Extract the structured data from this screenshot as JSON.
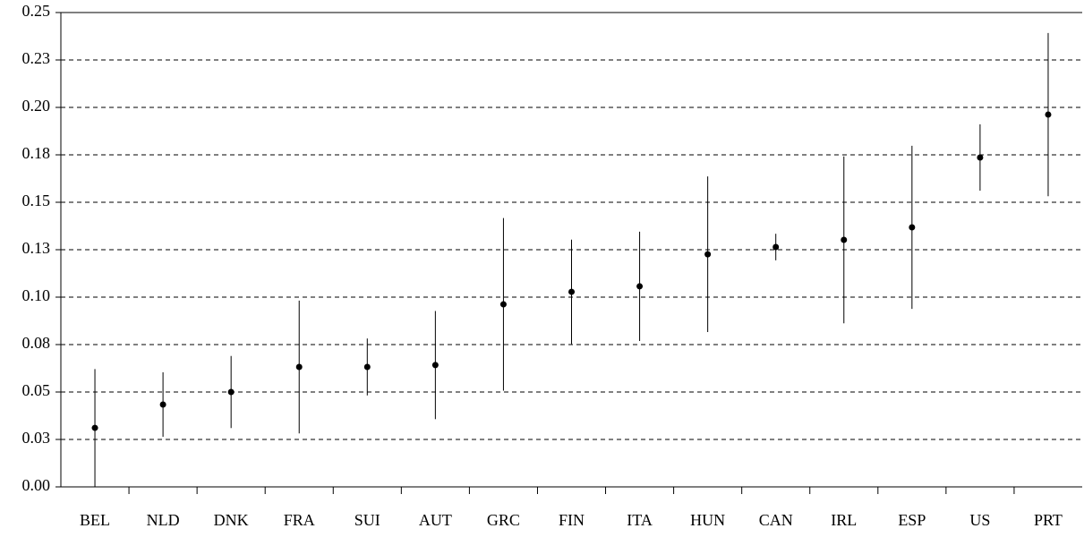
{
  "chart_data": {
    "type": "errorbar",
    "categories": [
      "BEL",
      "NLD",
      "DNK",
      "FRA",
      "SUI",
      "AUT",
      "GRC",
      "FIN",
      "ITA",
      "HUN",
      "CAN",
      "IRL",
      "ESP",
      "US",
      "PRT"
    ],
    "values": [
      0.0311,
      0.0434,
      0.05,
      0.0632,
      0.0632,
      0.0642,
      0.0962,
      0.1028,
      0.1057,
      0.1226,
      0.1264,
      0.1302,
      0.1368,
      0.1736,
      0.1962
    ],
    "errors": [
      0.031,
      0.017,
      0.019,
      0.035,
      0.015,
      0.0285,
      0.0455,
      0.0275,
      0.0288,
      0.041,
      0.007,
      0.044,
      0.043,
      0.0175,
      0.043
    ],
    "color": "#000000",
    "ylim": [
      0,
      0.25
    ],
    "yticks": [
      {
        "value": 0,
        "label": "0.00"
      },
      {
        "value": 0.025,
        "label": "0.03"
      },
      0.05,
      {
        "value": 0.075,
        "label": "0.08"
      },
      {
        "value": 0.1,
        "label": "0.10"
      },
      {
        "value": 0.125,
        "label": "0.13"
      },
      0.15,
      {
        "value": 0.175,
        "label": "0.18"
      },
      {
        "value": 0.2,
        "label": "0.20"
      },
      {
        "value": 0.225,
        "label": "0.23"
      },
      0.25
    ],
    "grid": true
  }
}
